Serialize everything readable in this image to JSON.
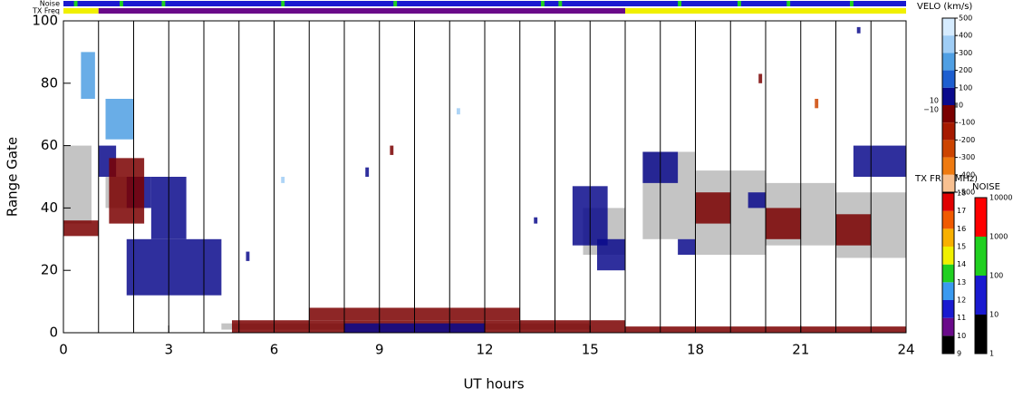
{
  "chart_data": {
    "type": "range-time",
    "xlabel": "UT hours",
    "ylabel": "Range Gate",
    "xlim": [
      0,
      24
    ],
    "xticks": [
      0,
      3,
      6,
      9,
      12,
      15,
      18,
      21,
      24
    ],
    "xgrid": [
      1,
      2,
      3,
      4,
      5,
      6,
      7,
      8,
      9,
      10,
      11,
      12,
      13,
      14,
      15,
      16,
      17,
      18,
      19,
      20,
      21,
      22,
      23
    ],
    "ylim": [
      0,
      100
    ],
    "yticks": [
      0,
      20,
      40,
      60,
      80,
      100
    ],
    "ground_color": "#bebebe",
    "velocity_scale": {
      "title": "VELO (km/s)",
      "vlim": [
        -500,
        500
      ],
      "colors": [
        "#d6ecff",
        "#9fcdf5",
        "#4f9fe3",
        "#1e5fd0",
        "#0a0a8c",
        "#7a0000",
        "#a61a00",
        "#cc4400",
        "#ee7a10",
        "#f8c090"
      ],
      "ticks": [
        500,
        400,
        300,
        200,
        100,
        0,
        -100,
        -200,
        -300,
        -400,
        -500,
        {
          "value": 10,
          "label": "10"
        },
        {
          "value": -10,
          "label": "−10"
        }
      ]
    },
    "txfreq_scale": {
      "title": "TX FRQ (MHz)",
      "ticks": [
        9,
        10,
        11,
        12,
        13,
        14,
        15,
        16,
        17,
        18
      ],
      "colors": [
        "#000000",
        "#6a0a8a",
        "#1a1ad0",
        "#3a9af0",
        "#20d020",
        "#f0f000",
        "#f8b000",
        "#f05a00",
        "#e00000"
      ]
    },
    "noise_scale": {
      "title": "NOISE",
      "ticks": [
        1,
        10,
        100,
        1000,
        10000
      ],
      "colors": [
        "#000000",
        "#1a1ad0",
        "#20d020",
        "#ff0000"
      ]
    },
    "noise_strip": {
      "label": "Noise",
      "segments": [
        [
          0,
          24,
          30
        ],
        [
          0.3,
          0.4,
          300
        ],
        [
          1.6,
          1.7,
          300
        ],
        [
          2.8,
          2.9,
          300
        ],
        [
          6.2,
          6.3,
          300
        ],
        [
          9.4,
          9.5,
          300
        ],
        [
          13.6,
          13.7,
          300
        ],
        [
          14.1,
          14.2,
          300
        ],
        [
          17.5,
          17.6,
          300
        ],
        [
          19.2,
          19.3,
          300
        ],
        [
          20.6,
          20.7,
          300
        ],
        [
          22.4,
          22.5,
          300
        ]
      ]
    },
    "txfreq_strip": {
      "label": "TX Freq",
      "segments": [
        [
          0,
          1,
          14.5
        ],
        [
          1,
          16,
          10.5
        ],
        [
          16,
          24,
          14.5
        ]
      ]
    },
    "ground_scatter": [
      [
        0,
        0.8,
        35,
        60
      ],
      [
        1.2,
        1.8,
        40,
        50
      ],
      [
        14.8,
        16,
        25,
        40
      ],
      [
        16.5,
        18,
        30,
        58
      ],
      [
        18,
        20,
        25,
        52
      ],
      [
        20,
        22,
        28,
        48
      ],
      [
        22,
        24,
        24,
        45
      ],
      [
        4.5,
        15,
        1,
        3
      ]
    ],
    "cells": [
      [
        0.5,
        0.9,
        75,
        90,
        250
      ],
      [
        1.2,
        2.0,
        62,
        75,
        250
      ],
      [
        1.0,
        1.5,
        50,
        60,
        50
      ],
      [
        1.8,
        2.5,
        40,
        50,
        50
      ],
      [
        1.8,
        4.5,
        12,
        30,
        50
      ],
      [
        2.5,
        3.5,
        30,
        50,
        50
      ],
      [
        14.5,
        15.5,
        28,
        47,
        50
      ],
      [
        15.2,
        16,
        20,
        30,
        50
      ],
      [
        22.5,
        24,
        50,
        60,
        50
      ],
      [
        0,
        1.0,
        31,
        36,
        -50
      ],
      [
        1.3,
        2.3,
        35,
        56,
        -50
      ],
      [
        4.8,
        16,
        0,
        4,
        -50
      ],
      [
        16,
        24,
        0,
        2,
        -50
      ],
      [
        7,
        13,
        4,
        8,
        -50
      ],
      [
        8,
        12,
        0,
        3,
        50
      ],
      [
        16.5,
        17.5,
        48,
        58,
        50
      ],
      [
        18,
        19,
        35,
        45,
        -50
      ],
      [
        20,
        21,
        30,
        40,
        -50
      ],
      [
        22,
        23,
        28,
        38,
        -50
      ],
      [
        17.5,
        18,
        25,
        30,
        50
      ],
      [
        19.5,
        20,
        40,
        45,
        50
      ],
      [
        9.3,
        9.4,
        57,
        60,
        -50
      ],
      [
        8.6,
        8.7,
        50,
        53,
        50
      ],
      [
        11.2,
        11.3,
        70,
        72,
        350
      ],
      [
        6.2,
        6.3,
        48,
        50,
        350
      ],
      [
        13.4,
        13.5,
        35,
        37,
        50
      ],
      [
        5.2,
        5.3,
        23,
        26,
        50
      ],
      [
        19.8,
        19.9,
        80,
        83,
        -50
      ],
      [
        21.4,
        21.5,
        72,
        75,
        -250
      ],
      [
        22.6,
        22.7,
        96,
        98,
        50
      ]
    ]
  }
}
